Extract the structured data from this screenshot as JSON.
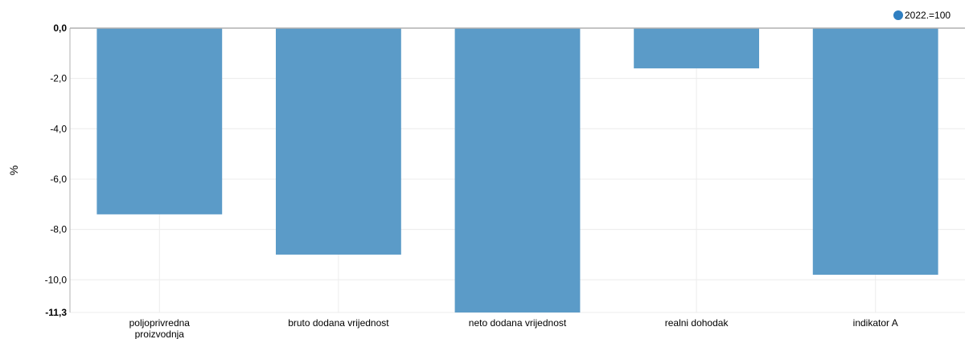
{
  "chart_data": {
    "type": "bar",
    "title": "",
    "xlabel": "",
    "ylabel": "%",
    "categories": [
      [
        "poljoprivredna",
        "proizvodnja"
      ],
      [
        "bruto dodana vrijednost"
      ],
      [
        "neto dodana vrijednost"
      ],
      [
        "realni dohodak"
      ],
      [
        "indikator A"
      ]
    ],
    "series": [
      {
        "name": "2022.=100",
        "values": [
          -7.4,
          -9.0,
          -11.3,
          -1.6,
          -9.8
        ]
      }
    ],
    "ylim": [
      -11.3,
      0
    ],
    "yticks": [
      0,
      -2,
      -4,
      -6,
      -8,
      -10,
      -11.3
    ],
    "ytick_labels": [
      "0,0",
      "-2,0",
      "-4,0",
      "-6,0",
      "-8,0",
      "-10,0",
      "-11,3"
    ],
    "grid": true,
    "legend_position": "top-right",
    "colors": {
      "bar": "#5b9bc8",
      "legend_marker": "#2f7fc1",
      "grid": "#ececec",
      "axis": "#b0b0b0"
    }
  }
}
